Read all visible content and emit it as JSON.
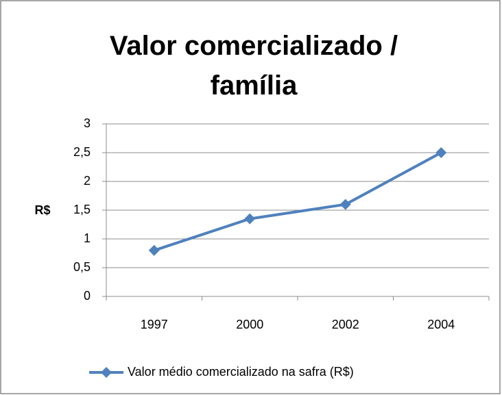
{
  "chart_data": {
    "type": "line",
    "title": "Valor comercializado / família",
    "y_label": "R$",
    "categories": [
      "1997",
      "2000",
      "2002",
      "2004"
    ],
    "series": [
      {
        "name": "Valor médio comercializado na safra (R$)",
        "color": "#4f81bd",
        "values": [
          0.8,
          1.35,
          1.6,
          2.5
        ]
      }
    ],
    "ylim": [
      0,
      3
    ],
    "yticks": [
      0,
      {
        "value": 0.5,
        "label": "0,5"
      },
      1,
      {
        "value": 1.5,
        "label": "1,5"
      },
      2,
      {
        "value": 2.5,
        "label": "2,5"
      },
      3
    ],
    "grid": true
  }
}
